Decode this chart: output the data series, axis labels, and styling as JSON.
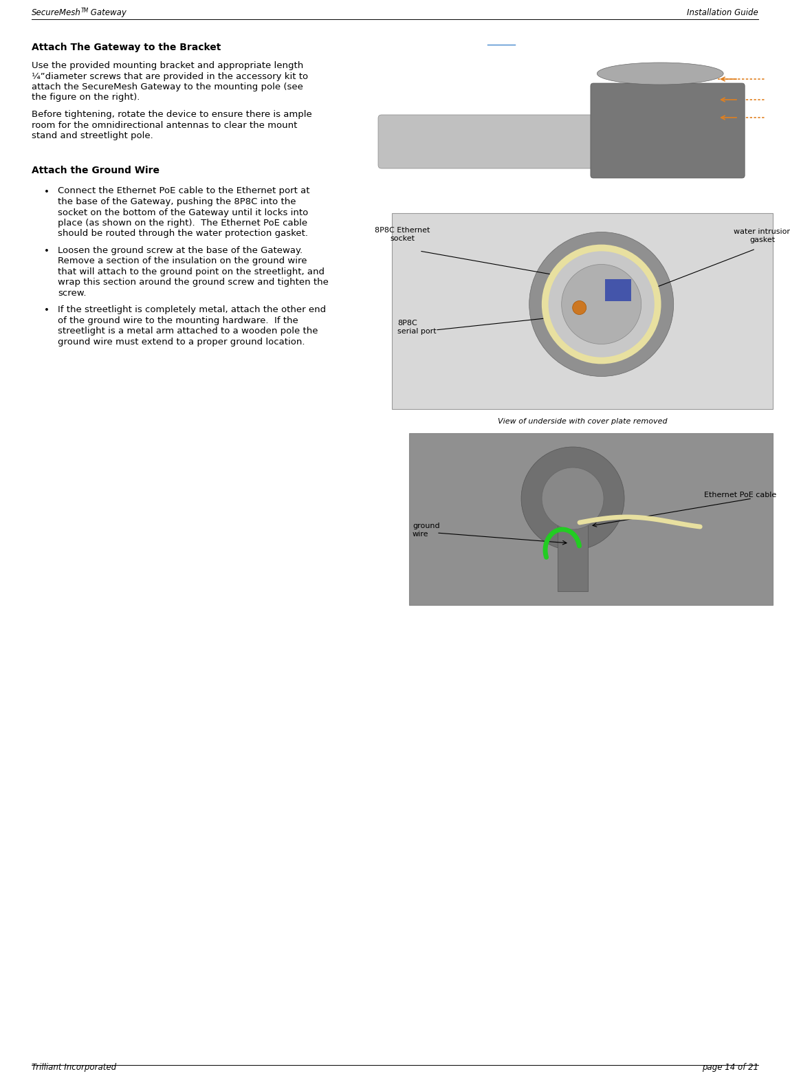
{
  "page_width": 11.49,
  "page_height": 15.81,
  "background_color": "#ffffff",
  "header_left": "SecureMesh",
  "header_left_super": "TM",
  "header_left_rest": " Gateway",
  "header_right": "Installation Guide",
  "footer_left": "Trilliant Incorporated",
  "footer_right": "page 14 of 21",
  "section1_title": "Attach The Gateway to the Bracket",
  "section1_para1": "Use the provided mounting bracket and appropriate length\n¼”diameter screws that are provided in the accessory kit to\nattach the SecureMesh Gateway to the mounting pole (see\nthe figure on the right).",
  "section1_para2": "Before tightening, rotate the device to ensure there is ample\nroom for the omnidirectional antennas to clear the mount\nstand and streetlight pole.",
  "section2_title": "Attach the Ground Wire",
  "bullet1_lines": [
    "Connect the Ethernet PoE cable to the Ethernet port at",
    "the base of the Gateway, pushing the 8P8C into the",
    "socket on the bottom of the Gateway until it locks into",
    "place (as shown on the right).  The Ethernet PoE cable",
    "should be routed through the water protection gasket."
  ],
  "bullet2_lines": [
    "Loosen the ground screw at the base of the Gateway.",
    "Remove a section of the insulation on the ground wire",
    "that will attach to the ground point on the streetlight, and",
    "wrap this section around the ground screw and tighten the",
    "screw."
  ],
  "bullet3_lines": [
    "If the streetlight is completely metal, attach the other end",
    "of the ground wire to the mounting hardware.  If the",
    "streetlight is a metal arm attached to a wooden pole the",
    "ground wire must extend to a proper ground location."
  ],
  "label_8p8c_ethernet": "8P8C Ethernet\nsocket",
  "label_water": "water intrusion\ngasket",
  "label_8p8c_serial": "8P8C\nserial port",
  "label_view": "View of underside with cover plate removed",
  "label_ground": "ground\nwire",
  "label_ethernet_poe": "Ethernet PoE cable",
  "text_color": "#000000",
  "header_font_size": 8.5,
  "body_font_size": 9.5,
  "title_font_size": 10,
  "label_font_size": 8,
  "caption_font_size": 8,
  "line_color": "#000000",
  "arrow_color_orange": "#e08020",
  "img1_color": "#c8c8c8",
  "img2_color": "#b0b0b0",
  "img3_color": "#909090"
}
